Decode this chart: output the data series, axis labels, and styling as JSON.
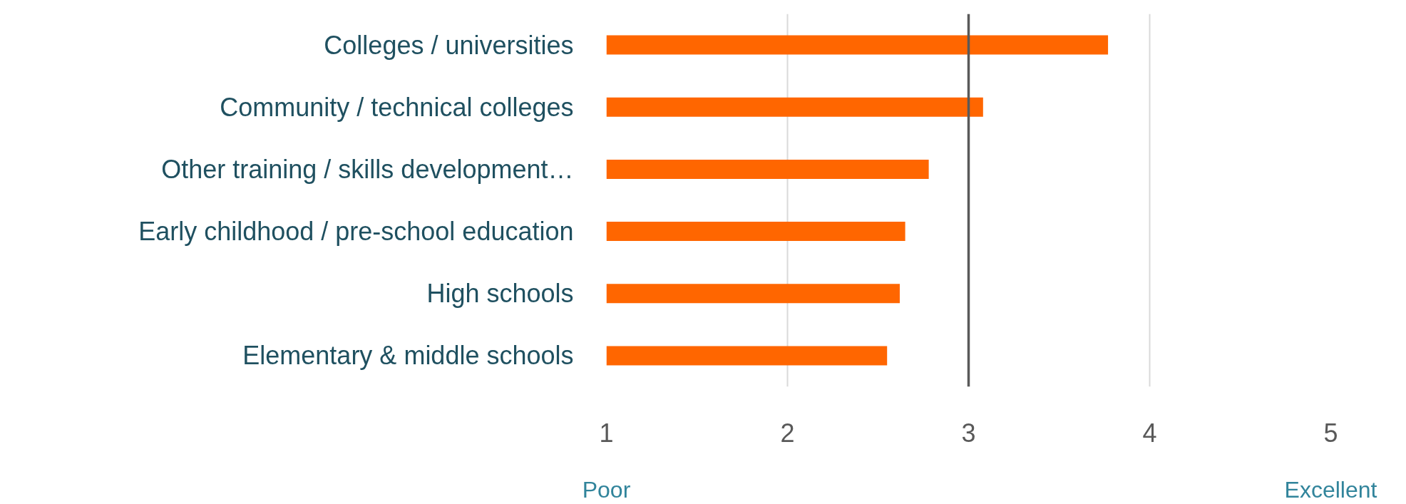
{
  "chart_data": {
    "type": "bar",
    "orientation": "horizontal",
    "categories": [
      "Colleges / universities",
      "Community / technical colleges",
      "Other training / skills development…",
      "Early childhood / pre-school education",
      "High schools",
      "Elementary & middle schools"
    ],
    "values": [
      2.77,
      2.08,
      1.78,
      1.65,
      1.62,
      1.55
    ],
    "base": [
      1,
      1,
      1,
      1,
      1,
      1
    ],
    "color": "#ff6600",
    "xlim": [
      1,
      5
    ],
    "xticks": [
      1,
      2,
      3,
      4,
      5
    ],
    "grid": "x",
    "ref_lines": [
      {
        "axis": "x",
        "value": 3,
        "label": null,
        "color": "#595959"
      }
    ],
    "annotations": [
      "Poor",
      "Excellent"
    ]
  }
}
